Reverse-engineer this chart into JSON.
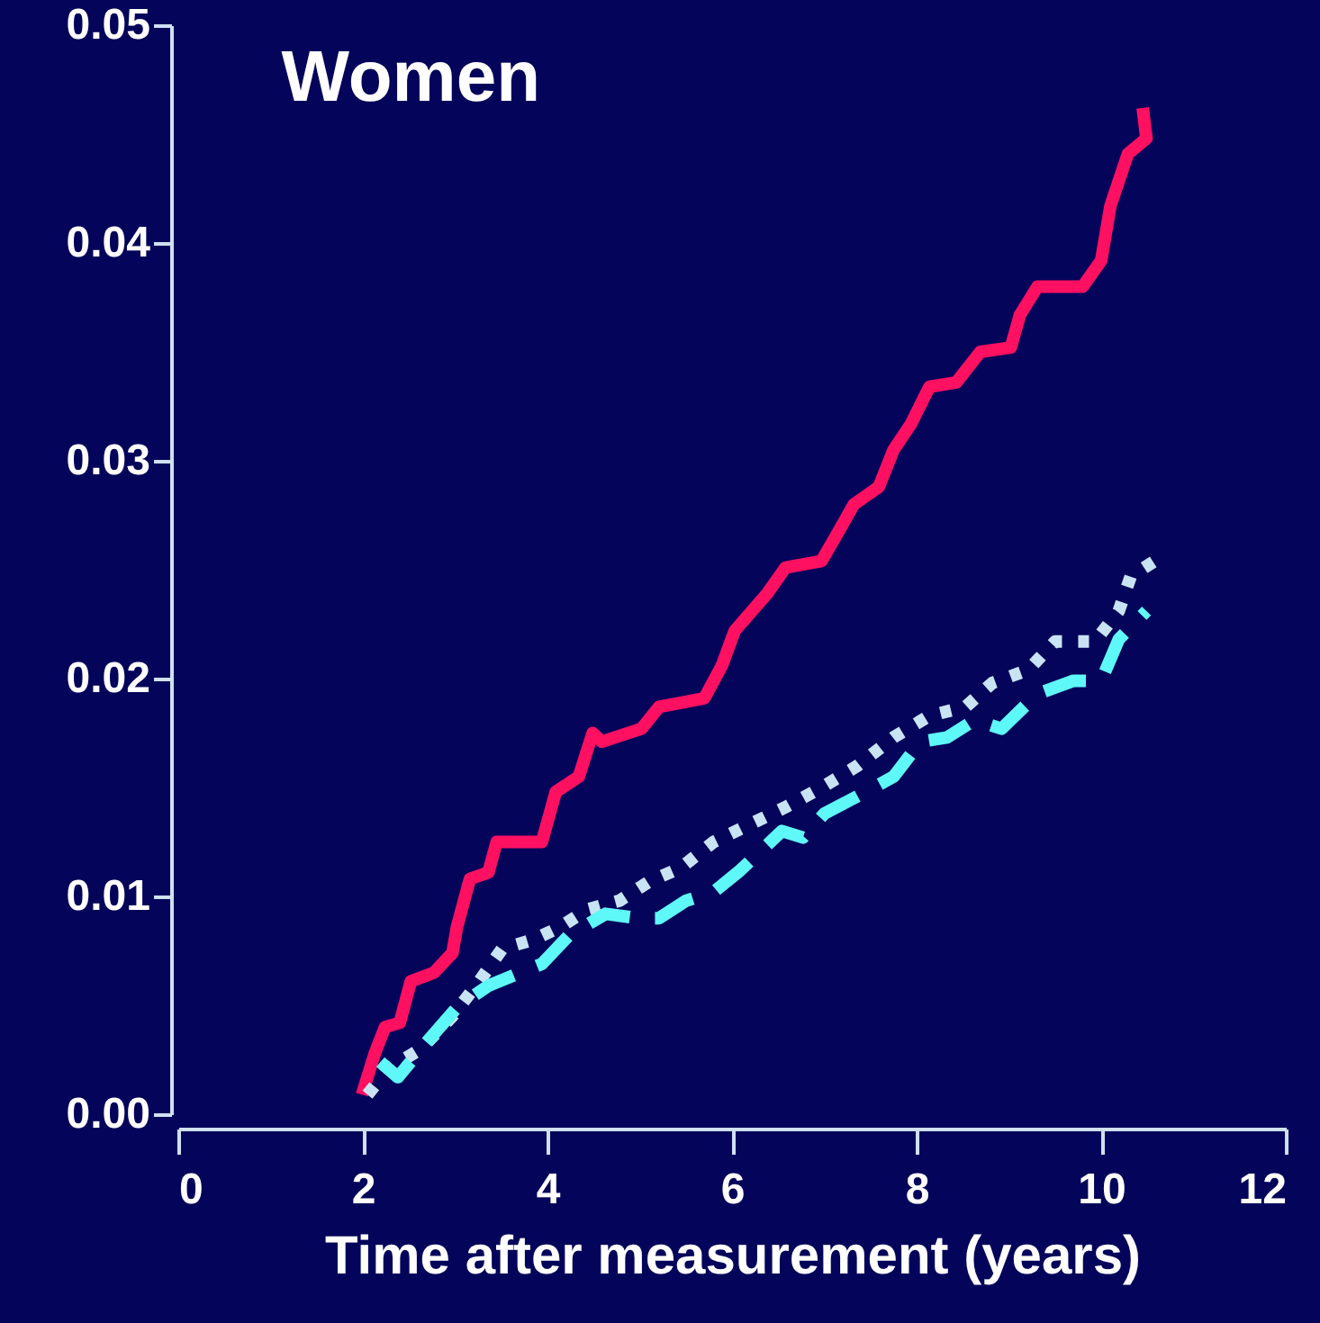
{
  "chart_data": {
    "type": "line",
    "title": "Women",
    "xlabel": "Time after measurement (years)",
    "xlim": [
      0,
      12
    ],
    "xticks": [
      0,
      2,
      4,
      6,
      8,
      10,
      12
    ],
    "ylim": [
      0,
      0.05
    ],
    "yticks": [
      {
        "value": 0,
        "label": "0.00"
      },
      {
        "value": 0.01,
        "label": "0.01"
      },
      {
        "value": 0.02,
        "label": "0.02"
      },
      {
        "value": 0.03,
        "label": "0.03"
      },
      {
        "value": 0.04,
        "label": "0.04"
      },
      {
        "value": 0.05,
        "label": "0.05"
      }
    ],
    "grid": false,
    "marker": "none",
    "series": [
      {
        "color": "#ff1060",
        "line_style": "solid",
        "x": [
          1.99,
          2.13,
          2.24,
          2.4,
          2.52,
          2.77,
          2.97,
          3.02,
          3.16,
          3.36,
          3.45,
          3.94,
          4.09,
          4.34,
          4.49,
          4.59,
          5.02,
          5.21,
          5.7,
          5.89,
          6.03,
          6.38,
          6.58,
          6.97,
          7.16,
          7.32,
          7.59,
          7.75,
          7.94,
          8.14,
          8.43,
          8.69,
          9.02,
          9.12,
          9.31,
          9.8,
          10.0,
          10.1,
          10.29,
          10.49,
          10.45
        ],
        "values": [
          0.0009,
          0.0028,
          0.004,
          0.0042,
          0.0061,
          0.0065,
          0.0074,
          0.0086,
          0.0108,
          0.0111,
          0.0125,
          0.0125,
          0.0148,
          0.0155,
          0.0175,
          0.0171,
          0.0177,
          0.0187,
          0.0191,
          0.0206,
          0.0222,
          0.0239,
          0.0251,
          0.0254,
          0.0268,
          0.028,
          0.0288,
          0.0305,
          0.0317,
          0.0334,
          0.0336,
          0.035,
          0.0352,
          0.0367,
          0.038,
          0.038,
          0.0392,
          0.0417,
          0.0441,
          0.0448,
          0.0462
        ]
      },
      {
        "color": "#c8e4f4",
        "line_style": "dotted",
        "x": [
          2.05,
          2.28,
          2.63,
          2.97,
          3.26,
          3.51,
          3.84,
          4.14,
          4.43,
          4.78,
          5.11,
          5.44,
          5.8,
          6.19,
          6.58,
          6.97,
          7.36,
          7.75,
          8.14,
          8.53,
          8.82,
          9.21,
          9.5,
          9.93,
          10.19,
          10.32,
          10.58
        ],
        "values": [
          0.0009,
          0.0021,
          0.003,
          0.0045,
          0.0061,
          0.0076,
          0.008,
          0.0086,
          0.0094,
          0.0098,
          0.0107,
          0.0113,
          0.0125,
          0.0133,
          0.0141,
          0.015,
          0.016,
          0.0173,
          0.0183,
          0.0187,
          0.0198,
          0.0204,
          0.0217,
          0.0217,
          0.0231,
          0.0247,
          0.0254
        ]
      },
      {
        "color": "#5ff8f8",
        "line_style": "dashed",
        "x": [
          2.19,
          2.38,
          2.67,
          3.02,
          3.36,
          3.65,
          3.94,
          4.23,
          4.63,
          4.98,
          5.21,
          5.5,
          5.8,
          6.09,
          6.54,
          6.77,
          7.0,
          7.45,
          7.75,
          8.04,
          8.33,
          8.63,
          8.92,
          9.31,
          9.7,
          10.0,
          10.19,
          10.49
        ],
        "values": [
          0.0024,
          0.0017,
          0.0032,
          0.0049,
          0.0059,
          0.0064,
          0.0069,
          0.0082,
          0.0092,
          0.009,
          0.009,
          0.0098,
          0.0102,
          0.0112,
          0.013,
          0.0127,
          0.0138,
          0.0148,
          0.0155,
          0.0171,
          0.0173,
          0.0181,
          0.0177,
          0.0193,
          0.0199,
          0.0199,
          0.0218,
          0.0231
        ]
      }
    ]
  }
}
